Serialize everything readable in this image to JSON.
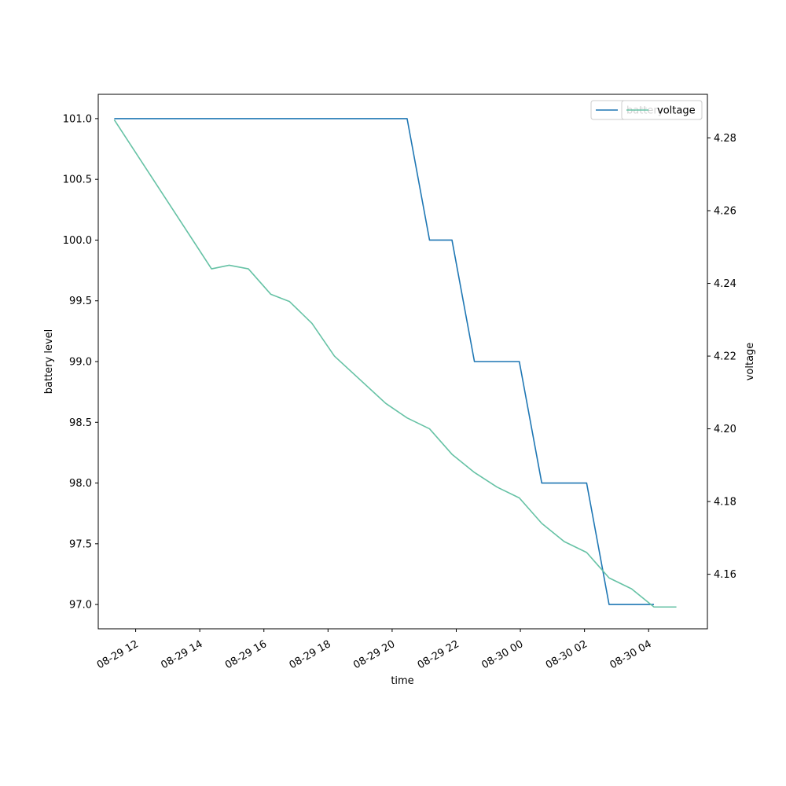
{
  "chart_data": {
    "type": "line",
    "title": "",
    "xlabel": "time",
    "ylabel_left": "battery level",
    "ylabel_right": "voltage",
    "xlim": [
      "2024-08-29 10:50",
      "2024-08-30 05:50"
    ],
    "ylim_left": [
      96.8,
      101.2
    ],
    "ylim_right": [
      4.145,
      4.292
    ],
    "x_tick_values": [
      "2024-08-29 12:00",
      "2024-08-29 14:00",
      "2024-08-29 16:00",
      "2024-08-29 18:00",
      "2024-08-29 20:00",
      "2024-08-29 22:00",
      "2024-08-30 00:00",
      "2024-08-30 02:00",
      "2024-08-30 04:00"
    ],
    "x_tick_labels": [
      "08-29 12",
      "08-29 14",
      "08-29 16",
      "08-29 18",
      "08-29 20",
      "08-29 22",
      "08-30 00",
      "08-30 02",
      "08-30 04"
    ],
    "y_ticks_left": [
      "97.0",
      "97.5",
      "98.0",
      "98.5",
      "99.0",
      "99.5",
      "100.0",
      "100.5",
      "101.0"
    ],
    "y_ticks_right": [
      "4.16",
      "4.18",
      "4.20",
      "4.22",
      "4.24",
      "4.26",
      "4.28"
    ],
    "grid": false,
    "legend_placement": "top-right",
    "series": [
      {
        "name": "battery",
        "axis": "left",
        "color": "#1f77b4",
        "points": [
          [
            "2024-08-29 11:20",
            101.0
          ],
          [
            "2024-08-29 20:28",
            101.0
          ],
          [
            "2024-08-29 21:10",
            100.0
          ],
          [
            "2024-08-29 21:52",
            100.0
          ],
          [
            "2024-08-29 22:34",
            99.0
          ],
          [
            "2024-08-29 23:58",
            99.0
          ],
          [
            "2024-08-30 00:40",
            98.0
          ],
          [
            "2024-08-30 02:04",
            98.0
          ],
          [
            "2024-08-30 02:46",
            97.0
          ],
          [
            "2024-08-30 04:10",
            97.0
          ]
        ]
      },
      {
        "name": "voltage",
        "axis": "right",
        "color": "#66c2a5",
        "points": [
          [
            "2024-08-29 11:20",
            4.285
          ],
          [
            "2024-08-29 14:22",
            4.244
          ],
          [
            "2024-08-29 14:55",
            4.245
          ],
          [
            "2024-08-29 15:31",
            4.244
          ],
          [
            "2024-08-29 16:13",
            4.237
          ],
          [
            "2024-08-29 16:48",
            4.235
          ],
          [
            "2024-08-29 17:30",
            4.229
          ],
          [
            "2024-08-29 18:12",
            4.22
          ],
          [
            "2024-08-29 19:48",
            4.207
          ],
          [
            "2024-08-29 20:28",
            4.203
          ],
          [
            "2024-08-29 21:10",
            4.2
          ],
          [
            "2024-08-29 21:52",
            4.193
          ],
          [
            "2024-08-29 22:34",
            4.188
          ],
          [
            "2024-08-29 23:16",
            4.184
          ],
          [
            "2024-08-29 23:58",
            4.181
          ],
          [
            "2024-08-30 00:40",
            4.174
          ],
          [
            "2024-08-30 01:22",
            4.169
          ],
          [
            "2024-08-30 02:04",
            4.166
          ],
          [
            "2024-08-30 02:46",
            4.159
          ],
          [
            "2024-08-30 03:28",
            4.156
          ],
          [
            "2024-08-30 04:10",
            4.151
          ],
          [
            "2024-08-30 04:52",
            4.151
          ]
        ]
      }
    ],
    "legends": [
      {
        "label": "battery",
        "color": "#1f77b4",
        "placement": "top-right"
      },
      {
        "label": "voltage",
        "color": "#66c2a5",
        "placement": "top-right"
      }
    ]
  }
}
